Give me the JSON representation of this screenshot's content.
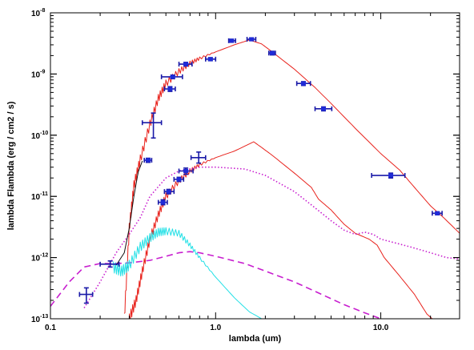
{
  "chart_data": {
    "type": "line",
    "title": "",
    "xlabel": "lambda (um)",
    "ylabel": "lambda Flambda (erg / cm2 / s)",
    "xscale": "log",
    "yscale": "log",
    "xlim": [
      0.1,
      30
    ],
    "ylim": [
      1e-13,
      1e-08
    ],
    "x_ticks": [
      {
        "value": 0.1,
        "label": "0.1"
      },
      {
        "value": 1.0,
        "label": "1.0"
      },
      {
        "value": 10.0,
        "label": "10.0"
      }
    ],
    "y_ticks": [
      {
        "value": 1e-13,
        "mantissa": "10",
        "exponent": "-13"
      },
      {
        "value": 1e-12,
        "mantissa": "10",
        "exponent": "-12"
      },
      {
        "value": 1e-11,
        "mantissa": "10",
        "exponent": "-11"
      },
      {
        "value": 1e-10,
        "mantissa": "10",
        "exponent": "-10"
      },
      {
        "value": 1e-09,
        "mantissa": "10",
        "exponent": "-9"
      },
      {
        "value": 1e-08,
        "mantissa": "10",
        "exponent": "-8"
      }
    ],
    "grid": false,
    "legend": "none",
    "series": [
      {
        "color": "#e8221c",
        "style": "solid",
        "jagged": true,
        "points": [
          [
            0.28,
            1e-13
          ],
          [
            0.3,
            3e-12
          ],
          [
            0.32,
            1.5e-11
          ],
          [
            0.35,
            4e-11
          ],
          [
            0.4,
            1.5e-10
          ],
          [
            0.45,
            4e-10
          ],
          [
            0.5,
            7e-10
          ],
          [
            0.6,
            1.1e-09
          ],
          [
            0.7,
            1.5e-09
          ],
          [
            0.8,
            1.8e-09
          ],
          [
            1.0,
            2.3e-09
          ],
          [
            1.3,
            3e-09
          ],
          [
            1.6,
            3.6e-09
          ],
          [
            1.9,
            3.1e-09
          ],
          [
            2.2,
            2.3e-09
          ],
          [
            3.0,
            1.2e-09
          ],
          [
            4.0,
            6e-10
          ],
          [
            5.0,
            3.3e-10
          ],
          [
            7.0,
            1.3e-10
          ],
          [
            10.0,
            5e-11
          ],
          [
            13.0,
            2.7e-11
          ],
          [
            16.0,
            1.4e-11
          ],
          [
            20.0,
            7e-12
          ],
          [
            24.0,
            4.5e-12
          ],
          [
            30.0,
            2.5e-12
          ]
        ]
      },
      {
        "color": "#e8221c",
        "style": "solid",
        "jagged": true,
        "points": [
          [
            0.3,
            1e-13
          ],
          [
            0.33,
            2e-13
          ],
          [
            0.36,
            6e-13
          ],
          [
            0.4,
            2e-12
          ],
          [
            0.45,
            5e-12
          ],
          [
            0.5,
            1e-11
          ],
          [
            0.6,
            1.8e-11
          ],
          [
            0.7,
            2.6e-11
          ],
          [
            0.8,
            3.3e-11
          ],
          [
            1.0,
            4.3e-11
          ],
          [
            1.3,
            5.5e-11
          ],
          [
            1.6,
            7.2e-11
          ],
          [
            1.7,
            7.8e-11
          ],
          [
            1.9,
            6.3e-11
          ],
          [
            2.2,
            4.7e-11
          ],
          [
            3.0,
            2.4e-11
          ],
          [
            3.8,
            1.4e-11
          ],
          [
            4.2,
            9e-12
          ],
          [
            5.0,
            6e-12
          ],
          [
            6.0,
            3.5e-12
          ],
          [
            7.0,
            2.5e-12
          ],
          [
            8.5,
            2e-12
          ],
          [
            9.5,
            1.6e-12
          ],
          [
            10.5,
            1e-12
          ],
          [
            13.0,
            5e-13
          ],
          [
            16.0,
            2.5e-13
          ],
          [
            19.0,
            1.2e-13
          ],
          [
            20.5,
            1e-13
          ]
        ]
      },
      {
        "color": "#c81fcf",
        "style": "dotted",
        "points": [
          [
            0.16,
            1.5e-13
          ],
          [
            0.2,
            4e-13
          ],
          [
            0.25,
            1.2e-12
          ],
          [
            0.3,
            2.4e-12
          ],
          [
            0.35,
            4.5e-12
          ],
          [
            0.4,
            1e-11
          ],
          [
            0.5,
            2e-11
          ],
          [
            0.6,
            2.6e-11
          ],
          [
            0.8,
            3e-11
          ],
          [
            1.0,
            3e-11
          ],
          [
            1.5,
            2.8e-11
          ],
          [
            2.0,
            2.2e-11
          ],
          [
            3.0,
            1.2e-11
          ],
          [
            4.0,
            6.5e-12
          ],
          [
            5.0,
            4e-12
          ],
          [
            6.0,
            2.8e-12
          ],
          [
            7.0,
            2.4e-12
          ],
          [
            8.0,
            2.6e-12
          ],
          [
            9.0,
            2.4e-12
          ],
          [
            10.0,
            2e-12
          ],
          [
            15.0,
            1.5e-12
          ],
          [
            20.0,
            1.2e-12
          ],
          [
            25.0,
            1e-12
          ],
          [
            30.0,
            9.5e-13
          ]
        ]
      },
      {
        "color": "#c81fcf",
        "style": "dashed",
        "points": [
          [
            0.1,
            1.6e-13
          ],
          [
            0.13,
            4e-13
          ],
          [
            0.16,
            7e-13
          ],
          [
            0.2,
            8e-13
          ],
          [
            0.25,
            8e-13
          ],
          [
            0.3,
            8.2e-13
          ],
          [
            0.4,
            9e-13
          ],
          [
            0.5,
            1.05e-12
          ],
          [
            0.6,
            1.2e-12
          ],
          [
            0.7,
            1.25e-12
          ],
          [
            0.8,
            1.2e-12
          ],
          [
            1.0,
            1.05e-12
          ],
          [
            1.5,
            8e-13
          ],
          [
            2.0,
            6e-13
          ],
          [
            3.0,
            4e-13
          ],
          [
            4.0,
            2.8e-13
          ],
          [
            6.0,
            1.7e-13
          ],
          [
            8.0,
            1.25e-13
          ],
          [
            10.0,
            1e-13
          ]
        ]
      },
      {
        "color": "#22e0e6",
        "style": "solid",
        "jagged": true,
        "points": [
          [
            0.24,
            7e-13
          ],
          [
            0.27,
            6e-13
          ],
          [
            0.3,
            7.5e-13
          ],
          [
            0.35,
            1.5e-12
          ],
          [
            0.4,
            2.1e-12
          ],
          [
            0.45,
            2.6e-12
          ],
          [
            0.5,
            2.7e-12
          ],
          [
            0.6,
            2.5e-12
          ],
          [
            0.7,
            1.6e-12
          ],
          [
            0.8,
            1e-12
          ],
          [
            1.0,
            4.8e-13
          ],
          [
            1.3,
            2.2e-13
          ],
          [
            1.6,
            1.3e-13
          ],
          [
            1.9,
            1e-13
          ]
        ]
      },
      {
        "color": "#111111",
        "style": "solid",
        "points": [
          [
            0.25,
            7.5e-13
          ],
          [
            0.28,
            1.2e-12
          ],
          [
            0.3,
            3e-12
          ],
          [
            0.32,
            1e-11
          ],
          [
            0.34,
            2.5e-11
          ],
          [
            0.36,
            3.8e-11
          ]
        ]
      }
    ],
    "error_points": [
      {
        "x": 0.165,
        "y": 2.5e-13,
        "xerr": [
          0.15,
          0.18
        ],
        "yerr": [
          1.8e-13,
          3.2e-13
        ],
        "marker": false
      },
      {
        "x": 0.23,
        "y": 7.8e-13,
        "xerr": [
          0.2,
          0.26
        ],
        "yerr": [
          7e-13,
          8.8e-13
        ],
        "marker": false
      },
      {
        "x": 0.39,
        "y": 3.9e-11,
        "xerr": [
          0.37,
          0.41
        ],
        "yerr": [
          3.6e-11,
          4.2e-11
        ],
        "marker": true
      },
      {
        "x": 0.42,
        "y": 1.6e-10,
        "xerr": [
          0.36,
          0.47
        ],
        "yerr": [
          9e-11,
          2.3e-10
        ],
        "marker": false
      },
      {
        "x": 0.48,
        "y": 8e-12,
        "xerr": [
          0.45,
          0.51
        ],
        "yerr": [
          7.3e-12,
          8.8e-12
        ],
        "marker": true
      },
      {
        "x": 0.52,
        "y": 1.2e-11,
        "xerr": [
          0.49,
          0.56
        ],
        "yerr": [
          1.1e-11,
          1.3e-11
        ],
        "marker": true
      },
      {
        "x": 0.53,
        "y": 5.7e-10,
        "xerr": [
          0.49,
          0.57
        ],
        "yerr": [
          5.2e-10,
          6.2e-10
        ],
        "marker": true
      },
      {
        "x": 0.55,
        "y": 9e-10,
        "xerr": [
          0.47,
          0.63
        ],
        "yerr": [
          8.4e-10,
          9.6e-10
        ],
        "marker": true
      },
      {
        "x": 0.6,
        "y": 1.9e-11,
        "xerr": [
          0.56,
          0.64
        ],
        "yerr": [
          1.75e-11,
          2.05e-11
        ],
        "marker": true
      },
      {
        "x": 0.66,
        "y": 1.45e-09,
        "xerr": [
          0.6,
          0.72
        ],
        "yerr": [
          1.35e-09,
          1.55e-09
        ],
        "marker": true
      },
      {
        "x": 0.66,
        "y": 2.6e-11,
        "xerr": [
          0.6,
          0.73
        ],
        "yerr": [
          2.3e-11,
          2.9e-11
        ],
        "marker": true
      },
      {
        "x": 0.79,
        "y": 4.3e-11,
        "xerr": [
          0.71,
          0.87
        ],
        "yerr": [
          3.5e-11,
          5.3e-11
        ],
        "marker": false
      },
      {
        "x": 0.93,
        "y": 1.75e-09,
        "xerr": [
          0.87,
          1.0
        ],
        "yerr": [
          1.65e-09,
          1.85e-09
        ],
        "marker": true
      },
      {
        "x": 1.25,
        "y": 3.5e-09,
        "xerr": [
          1.2,
          1.32
        ],
        "yerr": [
          3.3e-09,
          3.7e-09
        ],
        "marker": true
      },
      {
        "x": 1.65,
        "y": 3.7e-09,
        "xerr": [
          1.55,
          1.75
        ],
        "yerr": [
          3.5e-09,
          3.9e-09
        ],
        "marker": true
      },
      {
        "x": 2.2,
        "y": 2.2e-09,
        "xerr": [
          2.1,
          2.3
        ],
        "yerr": [
          2.05e-09,
          2.35e-09
        ],
        "marker": true
      },
      {
        "x": 3.4,
        "y": 7e-10,
        "xerr": [
          3.1,
          3.75
        ],
        "yerr": [
          6.5e-10,
          7.5e-10
        ],
        "marker": true
      },
      {
        "x": 4.5,
        "y": 2.7e-10,
        "xerr": [
          4.0,
          5.05
        ],
        "yerr": [
          2.5e-10,
          2.9e-10
        ],
        "marker": true
      },
      {
        "x": 11.5,
        "y": 2.2e-11,
        "xerr": [
          8.8,
          14.0
        ],
        "yerr": [
          2e-11,
          2.4e-11
        ],
        "marker": true
      },
      {
        "x": 22.0,
        "y": 5.3e-12,
        "xerr": [
          20.5,
          23.5
        ],
        "yerr": [
          5e-12,
          5.6e-12
        ],
        "marker": true
      }
    ]
  }
}
